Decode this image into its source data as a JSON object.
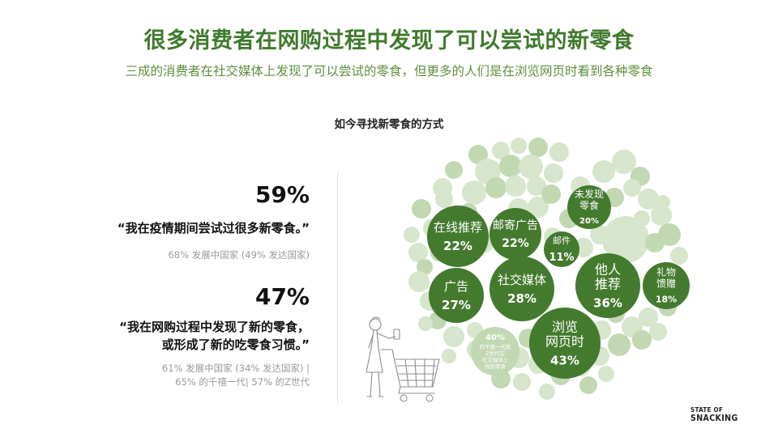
{
  "header": {
    "title": "很多消费者在网购过程中发现了可以尝试的新零食",
    "subtitle": "三成的消费者在社交媒体上发现了可以尝试的零食，但更多的人们是在浏览网页时看到各种零食"
  },
  "chart_title": "如今寻找新零食的方式",
  "stats": [
    {
      "percent": "59%",
      "quote_lines": [
        "“我在疫情期间尝试过很多新零食。”"
      ],
      "detail_lines": [
        "68% 发展中国家 (49% 发达国家)"
      ]
    },
    {
      "percent": "47%",
      "quote_lines": [
        "“我在网购过程中发现了新的零食，",
        "或形成了新的吃零食习惯。”"
      ],
      "detail_lines": [
        "61% 发展中国家 (34% 发达国家) |",
        "65% 的千禧一代| 57% 的Z世代"
      ]
    }
  ],
  "chart_data": {
    "type": "bubble",
    "title": "如今寻找新零食的方式",
    "items": [
      {
        "label": "在线推荐",
        "value": 22,
        "display": "22%"
      },
      {
        "label": "邮寄广告",
        "value": 22,
        "display": "22%"
      },
      {
        "label": "未发现零食",
        "value": 20,
        "display": "20%"
      },
      {
        "label": "邮件",
        "value": 11,
        "display": "11%"
      },
      {
        "label": "广告",
        "value": 27,
        "display": "27%"
      },
      {
        "label": "社交媒体",
        "value": 28,
        "display": "28%"
      },
      {
        "label": "他人推荐",
        "value": 36,
        "display": "36%"
      },
      {
        "label": "礼物馈赠",
        "value": 18,
        "display": "18%"
      },
      {
        "label": "浏览网页时",
        "value": 43,
        "display": "43%"
      }
    ],
    "annotation": {
      "value": "40%",
      "lines": [
        "的千禧一代和",
        "Z世代在",
        "社交媒体上",
        "找到零食"
      ]
    }
  },
  "colors": {
    "title": "#3f7a2c",
    "subtitle": "#5e8f3d",
    "bubble_dark": "#447a2e",
    "bubble_light": "#c2d8b3",
    "bubble_pale": "#d6e5cc"
  },
  "brand": {
    "line1": "STATE OF",
    "line2": "SNACKING"
  }
}
